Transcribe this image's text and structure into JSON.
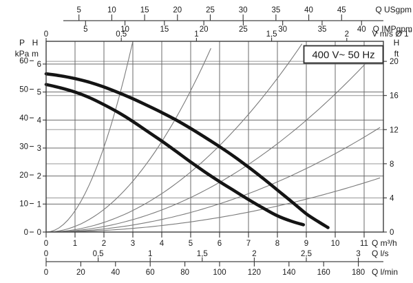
{
  "chart_data": {
    "type": "line",
    "title_badge": "400 V~ 50 Hz",
    "grid": "on, dark lines at metric units, gray lines at feet units",
    "q_axis_range_m3h": [
      0,
      11.67
    ],
    "h_axis_range_m": [
      0,
      6.81
    ],
    "axes": {
      "usgpm": {
        "title": "Q USgpm",
        "tick_values": [
          5,
          10,
          15,
          20,
          25,
          30,
          35,
          40,
          45
        ],
        "tick_labels": [
          "5",
          "10",
          "15",
          "20",
          "25",
          "30",
          "35",
          "40",
          "45"
        ]
      },
      "impgpm": {
        "title": "Q IMPgpm",
        "tick_values": [
          5,
          10,
          15,
          20,
          25,
          30,
          35,
          40
        ],
        "tick_labels": [
          "5",
          "10",
          "15",
          "20",
          "25",
          "30",
          "35",
          "40"
        ]
      },
      "v": {
        "title": "V m/s Ø 1\"",
        "tick_values": [
          0,
          0.5,
          1,
          1.5,
          2
        ],
        "tick_labels": [
          "0",
          "0,5",
          "1",
          "1,5",
          "2"
        ]
      },
      "m3h": {
        "title": "Q m³/h",
        "tick_values": [
          0,
          1,
          2,
          3,
          4,
          5,
          6,
          7,
          8,
          9,
          10,
          11
        ],
        "tick_labels": [
          "0",
          "1",
          "2",
          "3",
          "4",
          "5",
          "6",
          "7",
          "8",
          "9",
          "10",
          "11"
        ]
      },
      "ls": {
        "title": "Q l/s",
        "tick_values": [
          0,
          0.5,
          1,
          1.5,
          2,
          2.5,
          3
        ],
        "tick_labels": [
          "0",
          "0,5",
          "1",
          "1,5",
          "2",
          "2,5",
          "3"
        ]
      },
      "lmin": {
        "title": "Q l/min",
        "tick_values": [
          0,
          20,
          40,
          60,
          80,
          100,
          120,
          140,
          160,
          180
        ],
        "tick_labels": [
          "0",
          "20",
          "40",
          "60",
          "80",
          "100",
          "120",
          "140",
          "160",
          "180"
        ]
      },
      "kpa": {
        "title_lines": [
          "P",
          "kPa"
        ],
        "tick_values": [
          0,
          10,
          20,
          30,
          40,
          50,
          60
        ],
        "tick_labels": [
          "0",
          "10",
          "20",
          "30",
          "40",
          "50",
          "60"
        ]
      },
      "h_m": {
        "title_lines": [
          "H",
          "m"
        ],
        "tick_values": [
          0,
          1,
          2,
          3,
          4,
          5,
          6
        ],
        "tick_labels": [
          "0",
          "1",
          "2",
          "3",
          "4",
          "5",
          "6"
        ]
      },
      "h_ft": {
        "title_lines": [
          "H",
          "ft"
        ],
        "tick_values": [
          0,
          4,
          8,
          12,
          16,
          20
        ],
        "tick_labels": [
          "0",
          "4",
          "8",
          "12",
          "16",
          "20"
        ]
      }
    },
    "pump_curves": [
      {
        "name": "pump-curve-upper",
        "points_q_h": [
          [
            0,
            5.65
          ],
          [
            0.5,
            5.58
          ],
          [
            1,
            5.48
          ],
          [
            1.5,
            5.35
          ],
          [
            2,
            5.18
          ],
          [
            2.5,
            4.98
          ],
          [
            3,
            4.76
          ],
          [
            3.5,
            4.52
          ],
          [
            4,
            4.27
          ],
          [
            4.5,
            4.0
          ],
          [
            5,
            3.7
          ],
          [
            5.5,
            3.38
          ],
          [
            6,
            3.05
          ],
          [
            6.5,
            2.7
          ],
          [
            7,
            2.32
          ],
          [
            7.5,
            1.92
          ],
          [
            8,
            1.5
          ],
          [
            8.5,
            1.08
          ],
          [
            9,
            0.65
          ],
          [
            9.4,
            0.38
          ],
          [
            9.75,
            0.16
          ]
        ]
      },
      {
        "name": "pump-curve-lower",
        "points_q_h": [
          [
            0,
            5.27
          ],
          [
            0.5,
            5.15
          ],
          [
            1,
            5.0
          ],
          [
            1.5,
            4.8
          ],
          [
            2,
            4.55
          ],
          [
            2.5,
            4.27
          ],
          [
            3,
            3.95
          ],
          [
            3.5,
            3.6
          ],
          [
            4,
            3.25
          ],
          [
            4.5,
            2.88
          ],
          [
            5,
            2.5
          ],
          [
            5.5,
            2.14
          ],
          [
            6,
            1.8
          ],
          [
            6.5,
            1.48
          ],
          [
            7,
            1.16
          ],
          [
            7.5,
            0.86
          ],
          [
            8,
            0.58
          ],
          [
            8.5,
            0.38
          ],
          [
            8.9,
            0.26
          ]
        ]
      }
    ],
    "system_curves": {
      "model": "h = k · q² (thin pipe-friction curves from origin)",
      "k_values": [
        0.757,
        0.202,
        0.0858,
        0.0493,
        0.028,
        0.0145
      ]
    },
    "colors": {
      "pump_curve": "#141414",
      "system_curve": "#7a7a7a",
      "grid_metric": "#6a6a6a",
      "grid_feet": "#aeaeae",
      "frame": "#3c3c3c",
      "text": "#1a1a1a"
    }
  }
}
